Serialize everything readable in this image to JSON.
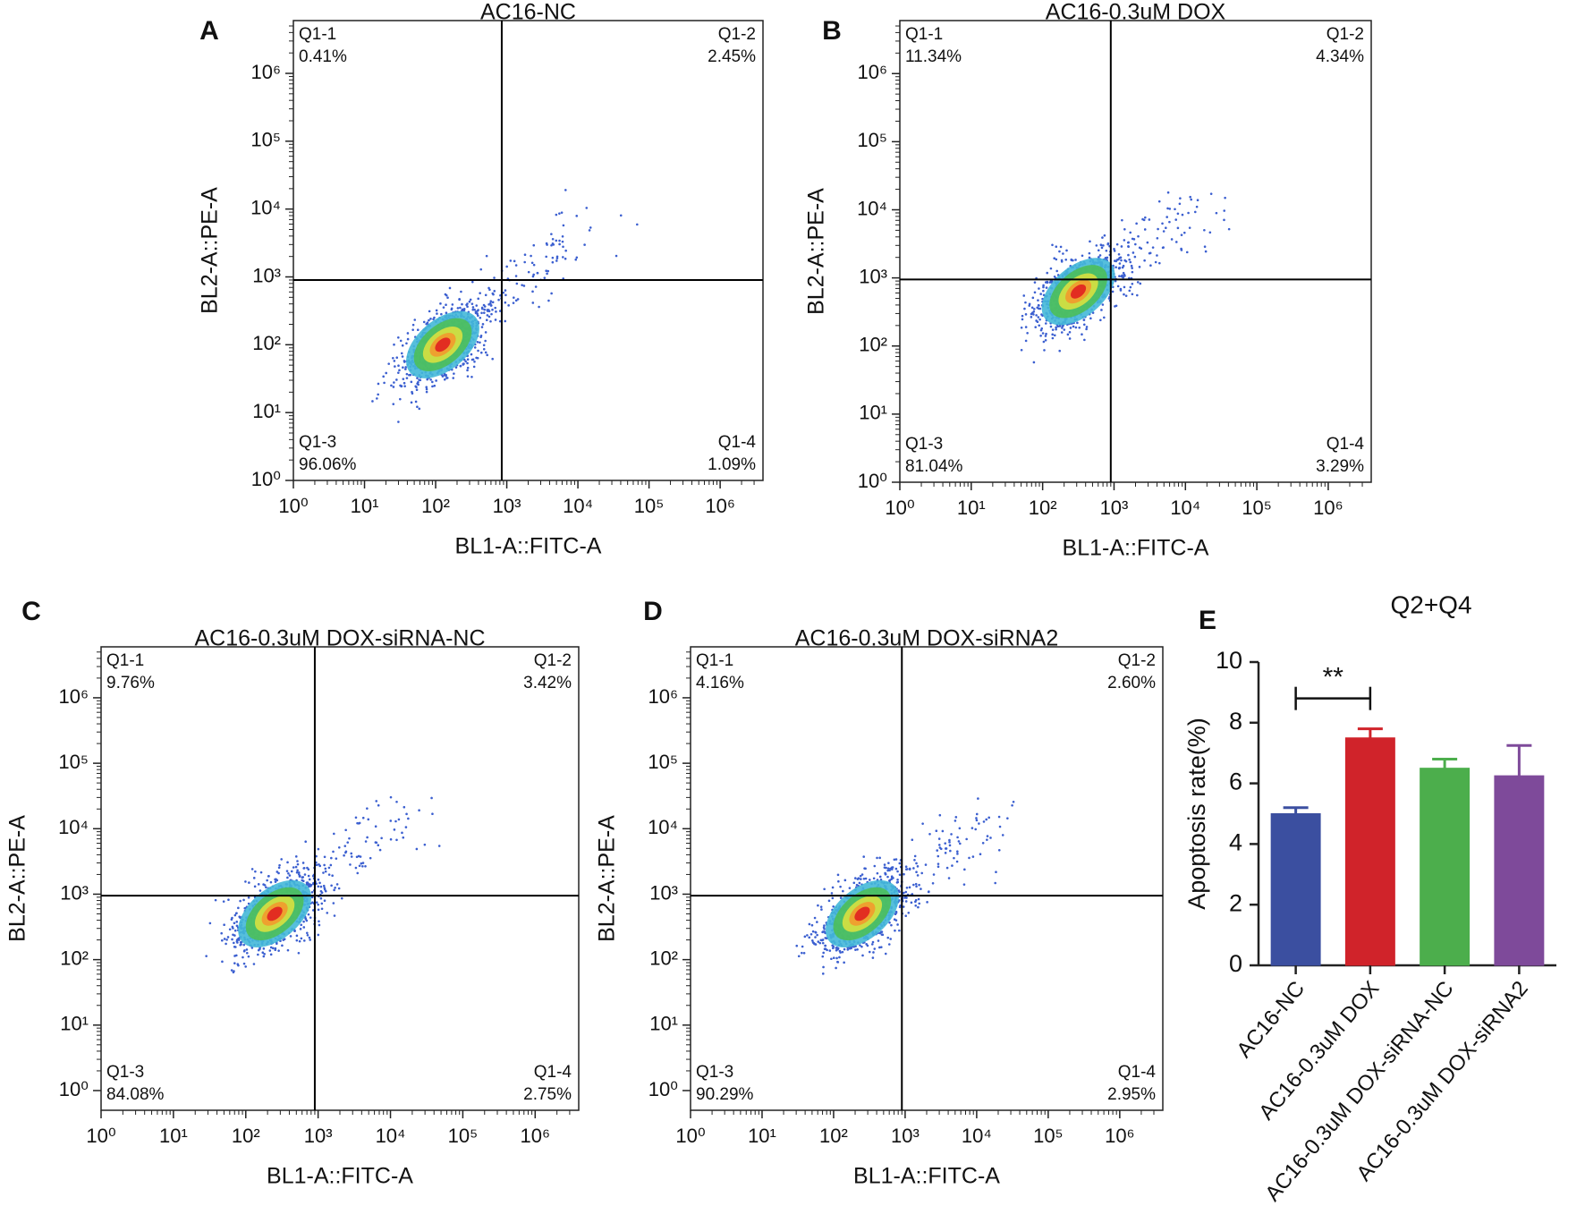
{
  "chart_data": [
    {
      "type": "flow",
      "panel": "A",
      "title": "AC16-NC",
      "x_label": "BL1-A::FITC-A",
      "y_label": "BL2-A::PE-A",
      "log_scale": true,
      "xlim": [
        1,
        4000000
      ],
      "ylim": [
        1,
        6000000
      ],
      "xticks": [
        {
          "value": 1,
          "label": "10⁰"
        },
        {
          "value": 10,
          "label": "10¹"
        },
        {
          "value": 100,
          "label": "10²"
        },
        {
          "value": 1000,
          "label": "10³"
        },
        {
          "value": 10000,
          "label": "10⁴"
        },
        {
          "value": 100000,
          "label": "10⁵"
        },
        {
          "value": 1000000,
          "label": "10⁶"
        }
      ],
      "yticks": [
        {
          "value": 1,
          "label": "10⁰"
        },
        {
          "value": 10,
          "label": "10¹"
        },
        {
          "value": 100,
          "label": "10²"
        },
        {
          "value": 1000,
          "label": "10³"
        },
        {
          "value": 10000,
          "label": "10⁴"
        },
        {
          "value": 100000,
          "label": "10⁵"
        },
        {
          "value": 1000000,
          "label": "10⁶"
        }
      ],
      "x_gate": 850,
      "y_gate": 900,
      "categories": [
        "Q1-1",
        "Q1-2",
        "Q1-3",
        "Q1-4"
      ],
      "values": [
        0.41,
        2.45,
        96.06,
        1.09
      ],
      "value_labels": [
        "0.41%",
        "2.45%",
        "96.06%",
        "1.09%"
      ]
    },
    {
      "type": "flow",
      "panel": "B",
      "title": "AC16-0.3uM DOX",
      "x_label": "BL1-A::FITC-A",
      "y_label": "BL2-A::PE-A",
      "log_scale": true,
      "xlim": [
        1,
        4000000
      ],
      "ylim": [
        1,
        6000000
      ],
      "xticks": [
        {
          "value": 1,
          "label": "10⁰"
        },
        {
          "value": 10,
          "label": "10¹"
        },
        {
          "value": 100,
          "label": "10²"
        },
        {
          "value": 1000,
          "label": "10³"
        },
        {
          "value": 10000,
          "label": "10⁴"
        },
        {
          "value": 100000,
          "label": "10⁵"
        },
        {
          "value": 1000000,
          "label": "10⁶"
        }
      ],
      "yticks": [
        {
          "value": 1,
          "label": "10⁰"
        },
        {
          "value": 10,
          "label": "10¹"
        },
        {
          "value": 100,
          "label": "10²"
        },
        {
          "value": 1000,
          "label": "10³"
        },
        {
          "value": 10000,
          "label": "10⁴"
        },
        {
          "value": 100000,
          "label": "10⁵"
        },
        {
          "value": 1000000,
          "label": "10⁶"
        }
      ],
      "x_gate": 900,
      "y_gate": 950,
      "categories": [
        "Q1-1",
        "Q1-2",
        "Q1-3",
        "Q1-4"
      ],
      "values": [
        11.34,
        4.34,
        81.04,
        3.29
      ],
      "value_labels": [
        "11.34%",
        "4.34%",
        "81.04%",
        "3.29%"
      ]
    },
    {
      "type": "flow",
      "panel": "C",
      "title": "AC16-0.3uM DOX-siRNA-NC",
      "x_label": "BL1-A::FITC-A",
      "y_label": "BL2-A::PE-A",
      "log_scale": true,
      "xlim": [
        1,
        4000000
      ],
      "ylim": [
        0.5,
        6000000
      ],
      "xticks": [
        {
          "value": 1,
          "label": "10⁰"
        },
        {
          "value": 10,
          "label": "10¹"
        },
        {
          "value": 100,
          "label": "10²"
        },
        {
          "value": 1000,
          "label": "10³"
        },
        {
          "value": 10000,
          "label": "10⁴"
        },
        {
          "value": 100000,
          "label": "10⁵"
        },
        {
          "value": 1000000,
          "label": "10⁶"
        }
      ],
      "yticks": [
        {
          "value": 1,
          "label": "10⁰"
        },
        {
          "value": 10,
          "label": "10¹"
        },
        {
          "value": 100,
          "label": "10²"
        },
        {
          "value": 1000,
          "label": "10³"
        },
        {
          "value": 10000,
          "label": "10⁴"
        },
        {
          "value": 100000,
          "label": "10⁵"
        },
        {
          "value": 1000000,
          "label": "10⁶"
        }
      ],
      "x_gate": 900,
      "y_gate": 950,
      "categories": [
        "Q1-1",
        "Q1-2",
        "Q1-3",
        "Q1-4"
      ],
      "values": [
        9.76,
        3.42,
        84.08,
        2.75
      ],
      "value_labels": [
        "9.76%",
        "3.42%",
        "84.08%",
        "2.75%"
      ]
    },
    {
      "type": "flow",
      "panel": "D",
      "title": "AC16-0.3uM DOX-siRNA2",
      "x_label": "BL1-A::FITC-A",
      "y_label": "BL2-A::PE-A",
      "log_scale": true,
      "xlim": [
        1,
        4000000
      ],
      "ylim": [
        0.5,
        6000000
      ],
      "xticks": [
        {
          "value": 1,
          "label": "10⁰"
        },
        {
          "value": 10,
          "label": "10¹"
        },
        {
          "value": 100,
          "label": "10²"
        },
        {
          "value": 1000,
          "label": "10³"
        },
        {
          "value": 10000,
          "label": "10⁴"
        },
        {
          "value": 100000,
          "label": "10⁵"
        },
        {
          "value": 1000000,
          "label": "10⁶"
        }
      ],
      "yticks": [
        {
          "value": 1,
          "label": "10⁰"
        },
        {
          "value": 10,
          "label": "10¹"
        },
        {
          "value": 100,
          "label": "10²"
        },
        {
          "value": 1000,
          "label": "10³"
        },
        {
          "value": 10000,
          "label": "10⁴"
        },
        {
          "value": 100000,
          "label": "10⁵"
        },
        {
          "value": 1000000,
          "label": "10⁶"
        }
      ],
      "x_gate": 900,
      "y_gate": 950,
      "categories": [
        "Q1-1",
        "Q1-2",
        "Q1-3",
        "Q1-4"
      ],
      "values": [
        4.16,
        2.6,
        90.29,
        2.95
      ],
      "value_labels": [
        "4.16%",
        "2.60%",
        "90.29%",
        "2.95%"
      ]
    },
    {
      "type": "bar",
      "panel": "E",
      "title": "Q2+Q4",
      "y_label": "Apoptosis rate(%)",
      "categories": [
        "AC16-NC",
        "AC16-0.3uM DOX",
        "AC16-0.3uM DOX-siRNA-NC",
        "AC16-0.3uM DOX-siRNA2"
      ],
      "values": [
        5.0,
        7.5,
        6.5,
        6.25
      ],
      "errors": [
        0.2,
        0.3,
        0.3,
        1.0
      ],
      "colors": [
        "#3b4fa0",
        "#d0232a",
        "#4cae4c",
        "#7e4a9a"
      ],
      "ylim": [
        0,
        10
      ],
      "yticks": [
        0,
        2,
        4,
        6,
        8,
        10
      ],
      "annotation": "**"
    }
  ]
}
